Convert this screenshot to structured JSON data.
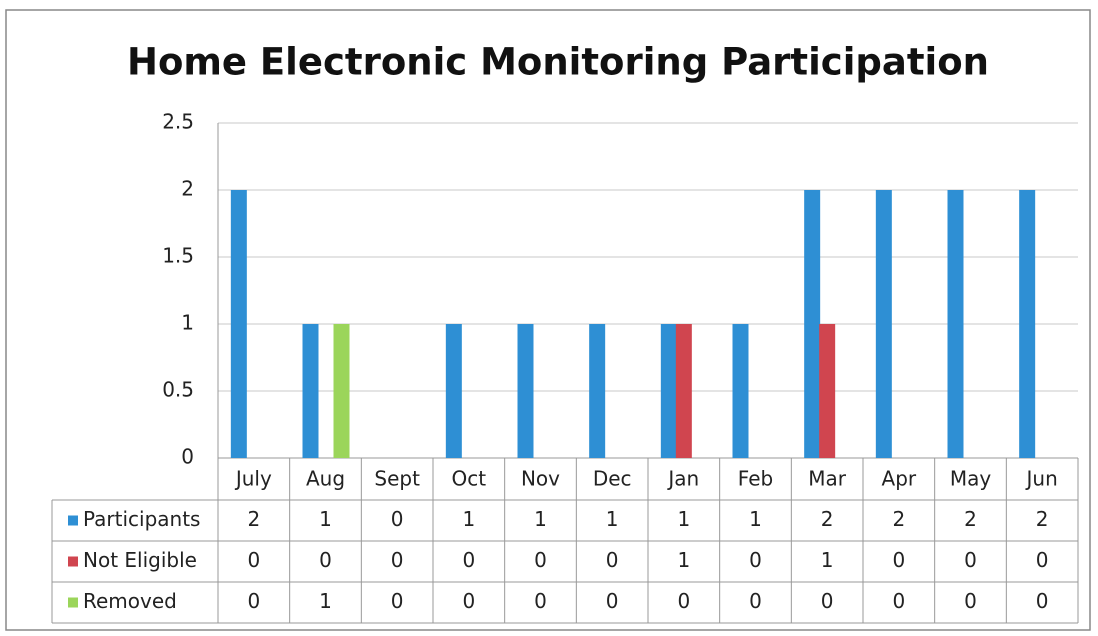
{
  "chart_data": {
    "type": "bar",
    "title": "Home Electronic Monitoring Participation",
    "categories": [
      "July",
      "Aug",
      "Sept",
      "Oct",
      "Nov",
      "Dec",
      "Jan",
      "Feb",
      "Mar",
      "Apr",
      "May",
      "Jun"
    ],
    "series": [
      {
        "name": "Participants",
        "color": "#2e8fd4",
        "values": [
          2,
          1,
          0,
          1,
          1,
          1,
          1,
          1,
          2,
          2,
          2,
          2
        ]
      },
      {
        "name": "Not Eligible",
        "color": "#d0454f",
        "values": [
          0,
          0,
          0,
          0,
          0,
          0,
          1,
          0,
          1,
          0,
          0,
          0
        ]
      },
      {
        "name": "Removed",
        "color": "#9bd55a",
        "values": [
          0,
          1,
          0,
          0,
          0,
          0,
          0,
          0,
          0,
          0,
          0,
          0
        ]
      }
    ],
    "ylim": [
      0,
      2.5
    ],
    "yticks": [
      0,
      0.5,
      1,
      1.5,
      2,
      2.5
    ],
    "grid": true,
    "data_table": true
  }
}
